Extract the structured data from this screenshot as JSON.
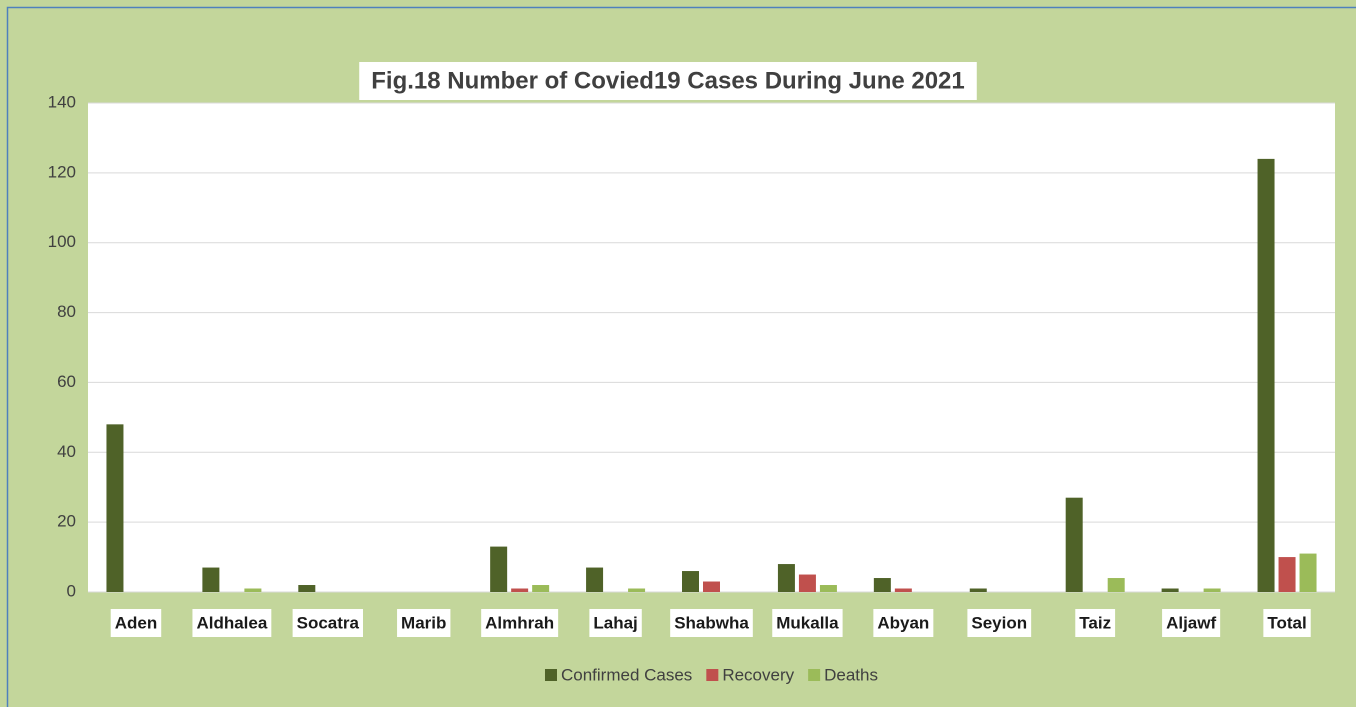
{
  "chart_data": {
    "type": "bar",
    "title": "Fig.18  Number of Covied19 Cases During June 2021",
    "categories": [
      "Aden",
      "Aldhalea",
      "Socatra",
      "Marib",
      "Almhrah",
      "Lahaj",
      "Shabwha",
      "Mukalla",
      "Abyan",
      "Seyion",
      "Taiz",
      "Aljawf",
      "Total"
    ],
    "series": [
      {
        "name": "Confirmed Cases",
        "color": "#4f6228",
        "values": [
          48,
          7,
          2,
          0,
          13,
          7,
          6,
          8,
          4,
          1,
          27,
          1,
          124
        ]
      },
      {
        "name": "Recovery",
        "color": "#c0504d",
        "values": [
          0,
          0,
          0,
          0,
          1,
          0,
          3,
          5,
          1,
          0,
          0,
          0,
          10
        ]
      },
      {
        "name": "Deaths",
        "color": "#9bbb59",
        "values": [
          0,
          1,
          0,
          0,
          2,
          1,
          0,
          2,
          0,
          0,
          4,
          1,
          11
        ]
      }
    ],
    "ylim": [
      0,
      140
    ],
    "yticks": [
      0,
      20,
      40,
      60,
      80,
      100,
      120,
      140
    ],
    "grid": true,
    "legend": "bottom"
  }
}
